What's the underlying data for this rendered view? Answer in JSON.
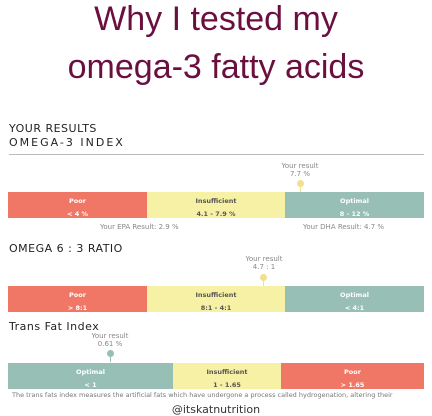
{
  "title": [
    "Why I tested my",
    "omega-3 fatty acids"
  ],
  "results_heading": "YOUR RESULTS",
  "sections": [
    {
      "name": "OMEGA-3 INDEX",
      "marker_label": "Your result",
      "marker_value": "7.7 %",
      "segments": [
        {
          "name": "Poor",
          "range": "< 4 %"
        },
        {
          "name": "Insufficient",
          "range": "4.1 - 7.9 %"
        },
        {
          "name": "Optimal",
          "range": "8 - 12 %"
        }
      ],
      "notes": [
        "Your EPA Result: 2.9 %",
        "Your DHA Result: 4.7 %"
      ]
    },
    {
      "name": "OMEGA 6 : 3 RATIO",
      "marker_label": "Your result",
      "marker_value": "4.7 : 1",
      "segments": [
        {
          "name": "Poor",
          "range": "> 8:1"
        },
        {
          "name": "Insufficient",
          "range": "8:1 - 4:1"
        },
        {
          "name": "Optimal",
          "range": "< 4:1"
        }
      ]
    },
    {
      "name": "Trans Fat Index",
      "marker_label": "Your result",
      "marker_value": "0.61 %",
      "segments": [
        {
          "name": "Optimal",
          "range": "< 1"
        },
        {
          "name": "Insufficient",
          "range": "1 - 1.65"
        },
        {
          "name": "Poor",
          "range": "> 1.65"
        }
      ]
    }
  ],
  "footnote": "The trans fats index measures the artificial fats which have undergone a process called hydrogenation, altering their",
  "handle": "@itskatnutrition"
}
